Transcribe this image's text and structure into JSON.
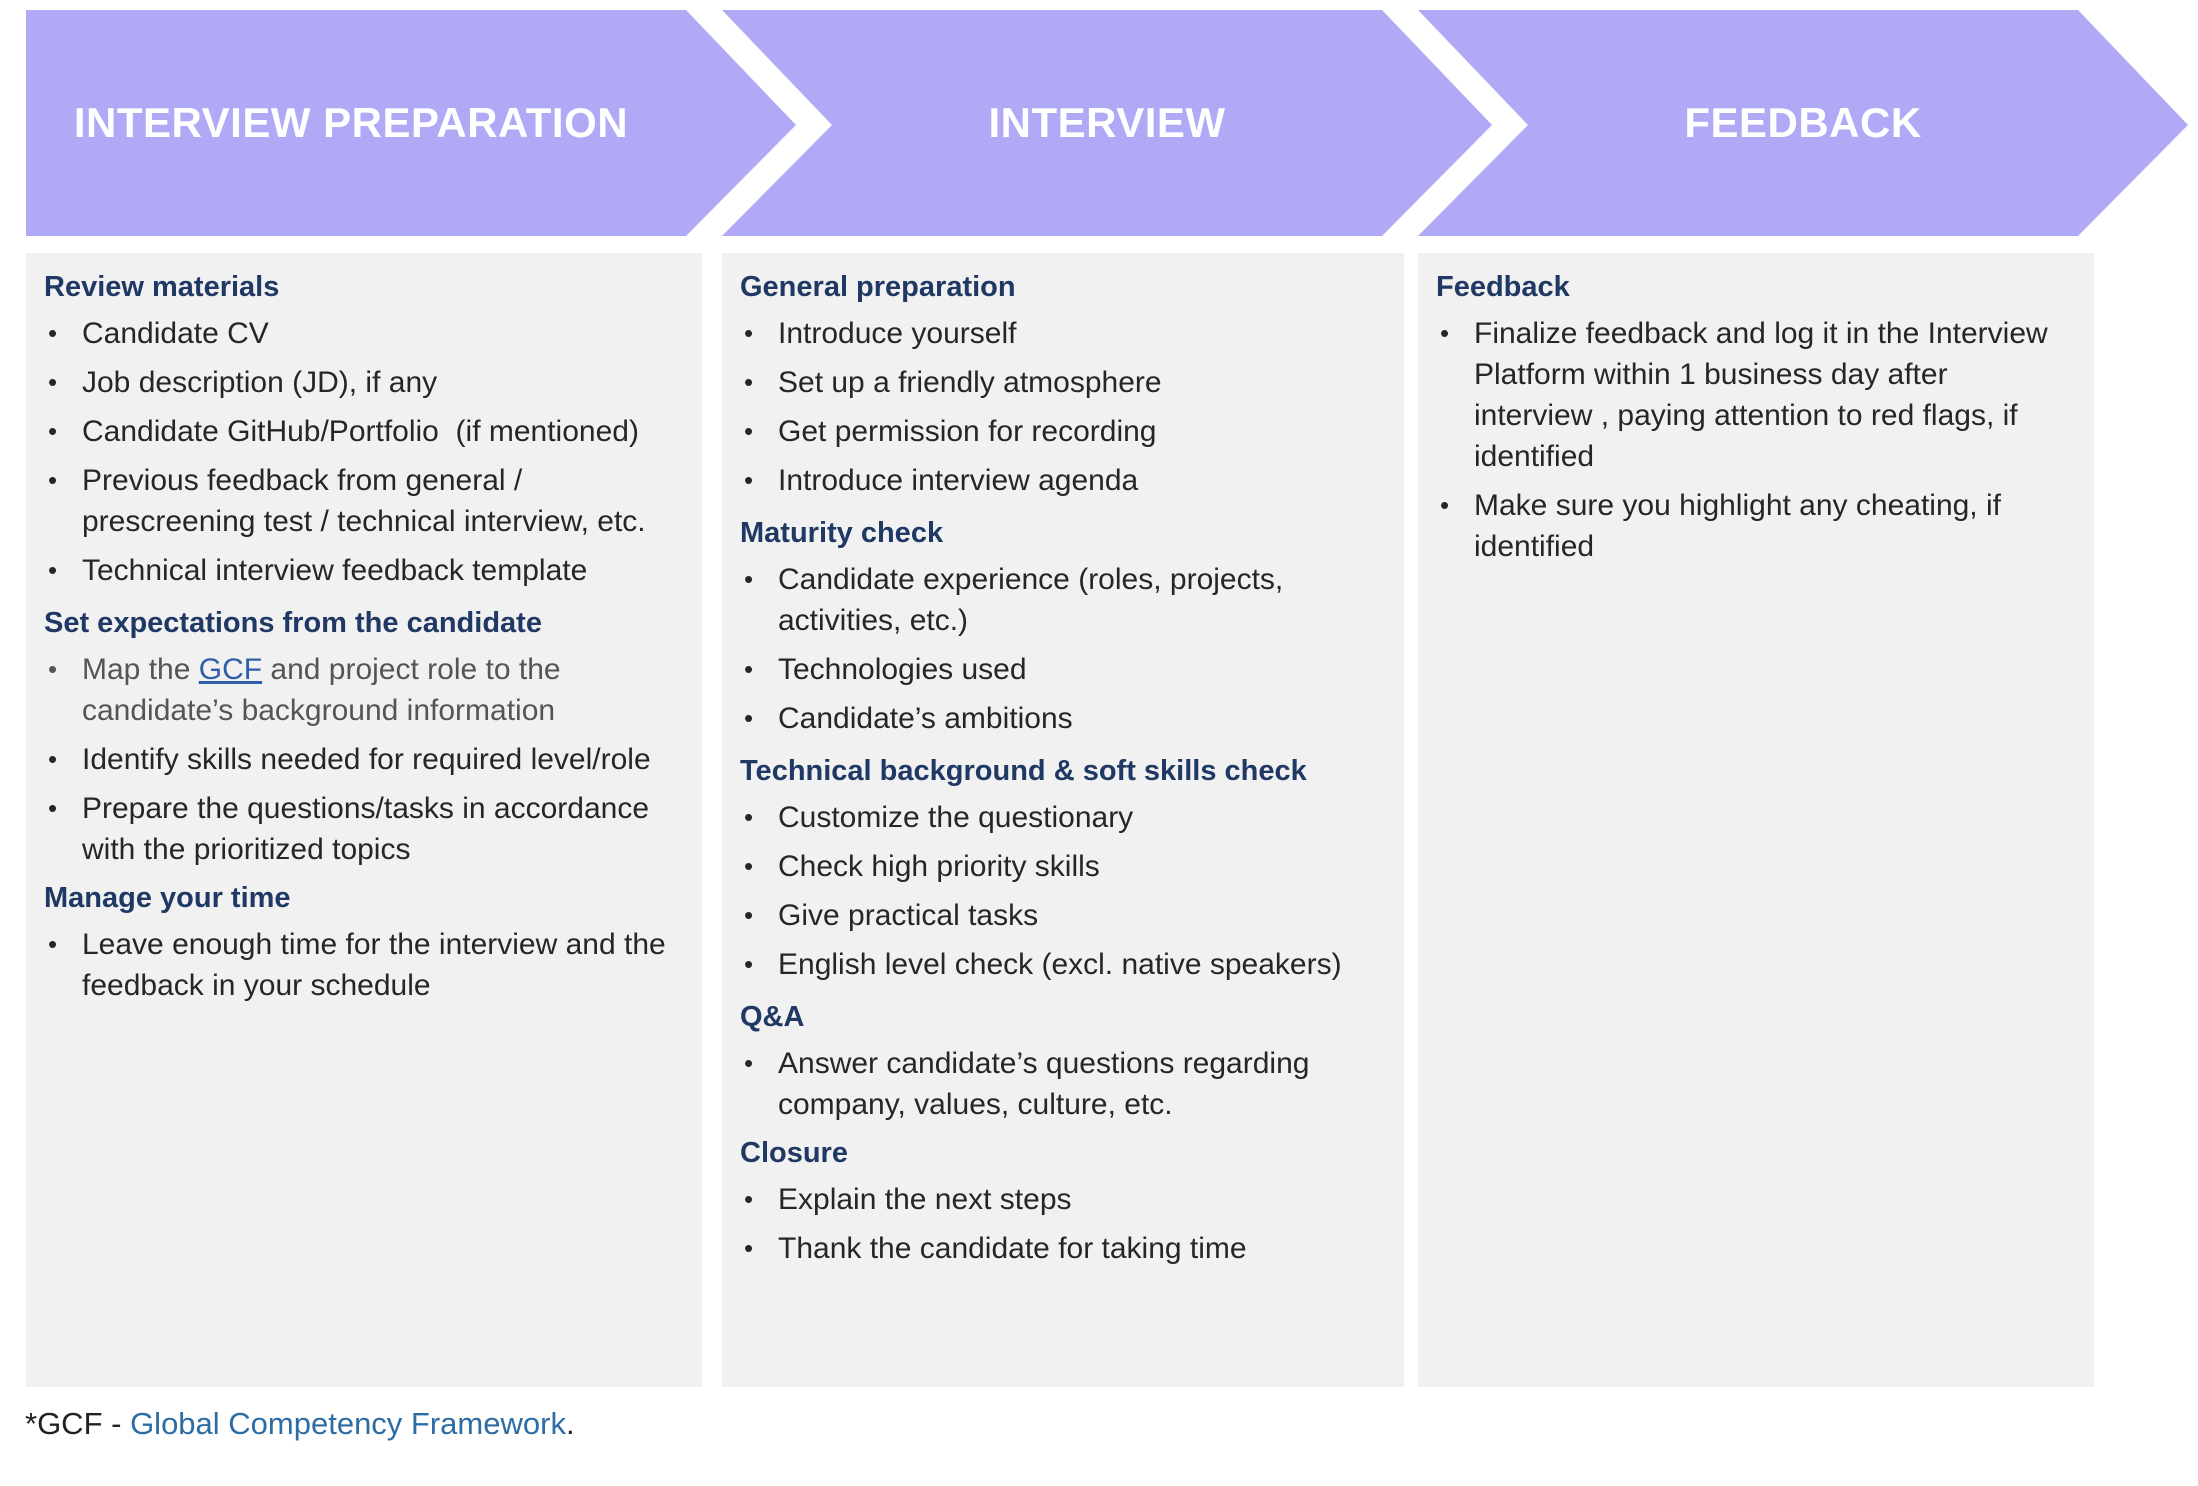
{
  "colors": {
    "banner": "#b0a9f6",
    "panel": "#f1f1f1",
    "heading": "#1f3864",
    "link": "#2e5ea8"
  },
  "stages": [
    {
      "title": "INTERVIEW PREPARATION"
    },
    {
      "title": "INTERVIEW"
    },
    {
      "title": "FEEDBACK"
    }
  ],
  "columns": [
    {
      "sections": [
        {
          "title": "Review materials",
          "items": [
            "Candidate CV",
            "Job description (JD), if any",
            "Candidate GitHub/Portfolio  (if mentioned)",
            "Previous feedback from general / prescreening test / technical interview, etc.",
            "Technical interview feedback template"
          ]
        },
        {
          "title": "Set expectations from the candidate",
          "map_item": {
            "before": "Map the ",
            "link": "GCF",
            "after": " and project role to the candidate’s background information"
          },
          "items": [
            "Identify skills needed for required level/role",
            "Prepare the questions/tasks in accordance with the prioritized topics"
          ]
        },
        {
          "title": "Manage your time",
          "items": [
            "Leave enough time for the interview and the feedback in your schedule"
          ]
        }
      ]
    },
    {
      "sections": [
        {
          "title": "General preparation",
          "items": [
            "Introduce yourself",
            "Set up a friendly atmosphere",
            "Get permission for recording",
            "Introduce interview agenda"
          ]
        },
        {
          "title": "Maturity check",
          "items": [
            "Candidate experience (roles, projects, activities, etc.)",
            "Technologies used",
            "Candidate’s ambitions"
          ]
        },
        {
          "title": "Technical background & soft skills check",
          "items": [
            "Customize the questionary",
            "Check high priority skills",
            "Give practical tasks",
            "English level check (excl. native speakers)"
          ]
        },
        {
          "title": "Q&A",
          "items": [
            "Answer candidate’s questions regarding company, values, culture, etc."
          ]
        },
        {
          "title": "Closure",
          "items": [
            "Explain the next steps",
            "Thank the candidate for taking time"
          ]
        }
      ]
    },
    {
      "sections": [
        {
          "title": "Feedback",
          "items": [
            "Finalize feedback and log it in the Interview Platform within 1 business day after interview , paying attention to red flags, if identified",
            "Make sure you highlight any cheating, if identified"
          ]
        }
      ]
    }
  ],
  "footnote": {
    "prefix": "*GCF - ",
    "link": "Global Competency Framework",
    "suffix": "."
  }
}
